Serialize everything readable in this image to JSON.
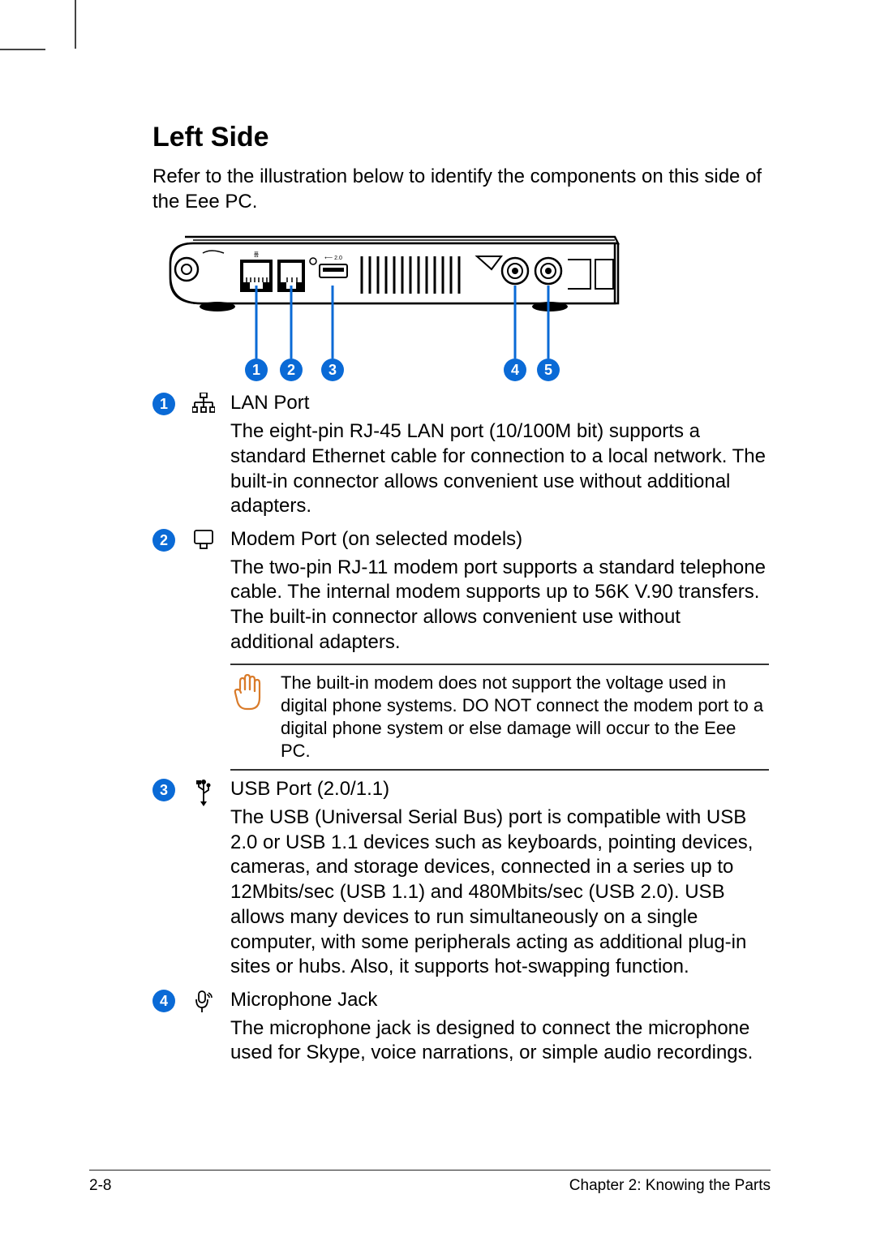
{
  "section_title": "Left Side",
  "intro": "Refer to the illustration below to identify the components on this side of the Eee PC.",
  "callouts": [
    "1",
    "2",
    "3",
    "4",
    "5"
  ],
  "callout_color": "#0a6ad6",
  "callout_line_positions_x": [
    128,
    171,
    222,
    447,
    488
  ],
  "items": [
    {
      "num": "1",
      "icon": "lan",
      "title": "LAN Port",
      "desc": "The eight-pin RJ-45 LAN port (10/100M bit) supports a standard Ethernet cable for connection to a local network. The built-in connector allows convenient use without additional adapters."
    },
    {
      "num": "2",
      "icon": "modem",
      "title": "Modem Port (on selected models)",
      "desc": "The two-pin RJ-11 modem port supports a standard telephone cable. The internal modem supports up to 56K V.90 transfers. The built-in connector allows convenient use without additional adapters."
    },
    {
      "num": "3",
      "icon": "usb",
      "title": "USB Port (2.0/1.1)",
      "desc": "The USB (Universal Serial Bus) port is compatible with USB 2.0 or USB 1.1 devices such as keyboards, pointing devices, cameras, and storage devices, connected in a series up to 12Mbits/sec (USB 1.1) and 480Mbits/sec (USB 2.0). USB allows many devices to run simultaneously on a single computer, with some peripherals acting as additional plug-in sites or hubs. Also, it supports hot-swapping function."
    },
    {
      "num": "4",
      "icon": "mic",
      "title": "Microphone Jack",
      "desc": "The microphone jack is designed to connect the microphone used for Skype, voice narrations, or simple audio recordings."
    }
  ],
  "warning": {
    "text": "The built-in modem does not support the voltage used in digital phone systems. DO NOT connect the modem port to a digital phone system or else damage will occur to the Eee PC."
  },
  "footer": {
    "left": "2-8",
    "right": "Chapter 2: Knowing the Parts"
  }
}
